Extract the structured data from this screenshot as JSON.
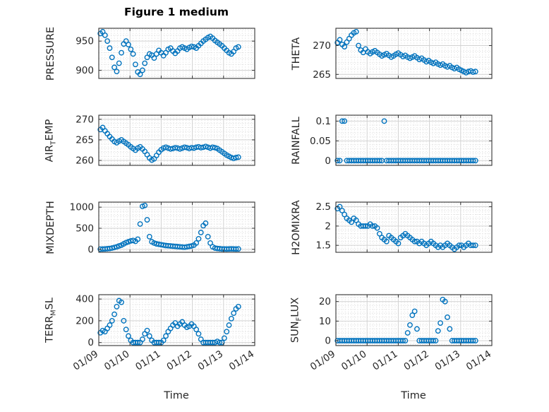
{
  "figure": {
    "title": "Figure 1 medium",
    "xlabel": "Time",
    "marker_color": "#0072BD",
    "marker_style": "circle-open"
  },
  "x_axis": {
    "tick_labels": [
      "01/09",
      "01/10",
      "01/11",
      "01/12",
      "01/13",
      "01/14"
    ],
    "range_days": [
      0,
      5
    ]
  },
  "chart_data": [
    {
      "name": "PRESSURE",
      "type": "scatter",
      "ylabel_segments": [
        {
          "text": "PRESSURE",
          "sub": false
        }
      ],
      "ylim": [
        886,
        972
      ],
      "yticks": [
        900,
        950
      ],
      "ytick_labels": [
        "900",
        "950"
      ],
      "yminor_step": 10,
      "x0": 0.05,
      "x_step": 0.075,
      "y": [
        963,
        966,
        960,
        950,
        938,
        922,
        905,
        898,
        912,
        930,
        945,
        950,
        944,
        936,
        928,
        910,
        897,
        893,
        900,
        912,
        922,
        928,
        926,
        921,
        928,
        934,
        930,
        925,
        930,
        936,
        938,
        933,
        929,
        933,
        938,
        940,
        938,
        936,
        939,
        941,
        940,
        938,
        942,
        946,
        950,
        953,
        956,
        958,
        955,
        951,
        948,
        945,
        942,
        938,
        934,
        930,
        928,
        932,
        938,
        940
      ]
    },
    {
      "name": "THETA",
      "type": "scatter",
      "ylabel_segments": [
        {
          "text": "THETA",
          "sub": false
        }
      ],
      "ylim": [
        264.3,
        273
      ],
      "yticks": [
        265,
        270
      ],
      "ytick_labels": [
        "265",
        "270"
      ],
      "yminor_step": 1,
      "x0": 0.05,
      "x_step": 0.075,
      "y": [
        270.5,
        271,
        270.2,
        269.8,
        270.6,
        271.2,
        271.8,
        272.2,
        272.4,
        270,
        269.2,
        268.8,
        269.4,
        268.9,
        268.6,
        268.9,
        269.1,
        268.8,
        268.5,
        268.2,
        268.4,
        268.6,
        268.3,
        268,
        268.2,
        268.5,
        268.7,
        268.4,
        268.1,
        268.3,
        268,
        267.8,
        268,
        268.2,
        267.9,
        267.6,
        267.8,
        267.5,
        267.2,
        267.4,
        267.1,
        266.9,
        267.1,
        266.8,
        266.6,
        266.8,
        266.5,
        266.3,
        266.5,
        266.2,
        266,
        266.2,
        265.9,
        265.7,
        265.5,
        265.3,
        265.5,
        265.6,
        265.4,
        265.5
      ]
    },
    {
      "name": "AIR_TEMP",
      "type": "scatter",
      "ylabel_segments": [
        {
          "text": "AIR",
          "sub": false
        },
        {
          "text": "T",
          "sub": true
        },
        {
          "text": "EMP",
          "sub": false
        }
      ],
      "ylim": [
        258.8,
        271
      ],
      "yticks": [
        260,
        265,
        270
      ],
      "ytick_labels": [
        "260",
        "265",
        "270"
      ],
      "yminor_step": 1,
      "x0": 0.05,
      "x_step": 0.075,
      "y": [
        267.5,
        268,
        267.2,
        266.5,
        265.8,
        265.2,
        264.6,
        264.3,
        264.7,
        265,
        264.6,
        264.2,
        263.8,
        263.3,
        262.9,
        262.5,
        263,
        263.3,
        262.8,
        262.2,
        261.4,
        260.6,
        260.1,
        260.4,
        261.2,
        262,
        262.6,
        263,
        263.2,
        263,
        262.8,
        262.9,
        263.1,
        263,
        262.8,
        263,
        263.2,
        263.1,
        262.9,
        263.1,
        263,
        263.2,
        263.3,
        263.1,
        263.2,
        263.4,
        263.2,
        263,
        263.2,
        263.1,
        262.9,
        262.5,
        262.1,
        261.7,
        261.3,
        261,
        260.7,
        260.5,
        260.7,
        260.8
      ]
    },
    {
      "name": "RAINFALL",
      "type": "scatter",
      "ylabel_segments": [
        {
          "text": "RAINFALL",
          "sub": false
        }
      ],
      "ylim": [
        -0.012,
        0.115
      ],
      "yticks": [
        0,
        0.05,
        0.1
      ],
      "ytick_labels": [
        "0",
        "0.05",
        "0.1"
      ],
      "yminor_step": 0.01,
      "x0": 0.05,
      "x_step": 0.075,
      "y": [
        0,
        0,
        0.1,
        0.1,
        0,
        0,
        0,
        0,
        0,
        0,
        0,
        0,
        0,
        0,
        0,
        0,
        0,
        0,
        0,
        0,
        0.1,
        0,
        0,
        0,
        0,
        0,
        0,
        0,
        0,
        0,
        0,
        0,
        0,
        0,
        0,
        0,
        0,
        0,
        0,
        0,
        0,
        0,
        0,
        0,
        0,
        0,
        0,
        0,
        0,
        0,
        0,
        0,
        0,
        0,
        0,
        0,
        0,
        0,
        0,
        0
      ]
    },
    {
      "name": "MIXDEPTH",
      "type": "scatter",
      "ylabel_segments": [
        {
          "text": "MIXDEPTH",
          "sub": false
        }
      ],
      "ylim": [
        -70,
        1120
      ],
      "yticks": [
        0,
        500,
        1000
      ],
      "ytick_labels": [
        "0",
        "500",
        "1000"
      ],
      "yminor_step": 100,
      "x0": 0.05,
      "x_step": 0.075,
      "y": [
        5,
        8,
        10,
        15,
        20,
        30,
        45,
        60,
        80,
        100,
        130,
        160,
        180,
        200,
        210,
        190,
        240,
        600,
        1020,
        1040,
        700,
        300,
        180,
        150,
        130,
        120,
        110,
        100,
        90,
        85,
        80,
        75,
        70,
        65,
        60,
        55,
        50,
        60,
        70,
        80,
        100,
        150,
        250,
        400,
        560,
        620,
        300,
        150,
        60,
        30,
        20,
        15,
        10,
        10,
        8,
        10,
        12,
        10,
        8,
        10
      ]
    },
    {
      "name": "H2OMIXRA",
      "type": "scatter",
      "ylabel_segments": [
        {
          "text": "H2OMIXRA",
          "sub": false
        }
      ],
      "ylim": [
        1.32,
        2.62
      ],
      "yticks": [
        1.5,
        2,
        2.5
      ],
      "ytick_labels": [
        "1.5",
        "2",
        "2.5"
      ],
      "yminor_step": 0.1,
      "x0": 0.05,
      "x_step": 0.075,
      "y": [
        2.45,
        2.5,
        2.4,
        2.3,
        2.2,
        2.15,
        2.1,
        2.2,
        2.15,
        2.05,
        2,
        2,
        2,
        2,
        2.05,
        2,
        2,
        1.95,
        1.8,
        1.7,
        1.65,
        1.6,
        1.75,
        1.7,
        1.65,
        1.6,
        1.55,
        1.7,
        1.75,
        1.8,
        1.75,
        1.7,
        1.65,
        1.6,
        1.6,
        1.55,
        1.6,
        1.55,
        1.5,
        1.55,
        1.6,
        1.55,
        1.5,
        1.45,
        1.5,
        1.45,
        1.5,
        1.55,
        1.5,
        1.45,
        1.4,
        1.45,
        1.5,
        1.5,
        1.45,
        1.5,
        1.55,
        1.5,
        1.5,
        1.5
      ]
    },
    {
      "name": "TERR_MSL",
      "type": "scatter",
      "ylabel_segments": [
        {
          "text": "TERR",
          "sub": false
        },
        {
          "text": "M",
          "sub": true
        },
        {
          "text": "SL",
          "sub": false
        }
      ],
      "ylim": [
        -28,
        440
      ],
      "yticks": [
        0,
        200,
        400
      ],
      "ytick_labels": [
        "0",
        "200",
        "400"
      ],
      "yminor_step": 50,
      "x0": 0.05,
      "x_step": 0.075,
      "y": [
        90,
        110,
        100,
        130,
        160,
        200,
        260,
        330,
        385,
        370,
        200,
        120,
        60,
        20,
        0,
        0,
        0,
        0,
        30,
        80,
        110,
        60,
        20,
        0,
        0,
        0,
        0,
        20,
        60,
        100,
        130,
        160,
        180,
        150,
        170,
        190,
        160,
        140,
        150,
        170,
        150,
        120,
        80,
        30,
        0,
        0,
        0,
        0,
        0,
        0,
        10,
        0,
        0,
        40,
        100,
        160,
        220,
        270,
        310,
        330
      ]
    },
    {
      "name": "SUN_FLUX",
      "type": "scatter",
      "ylabel_segments": [
        {
          "text": "SUN",
          "sub": false
        },
        {
          "text": "F",
          "sub": true
        },
        {
          "text": "LUX",
          "sub": false
        }
      ],
      "ylim": [
        -2.5,
        23.5
      ],
      "yticks": [
        0,
        10,
        20
      ],
      "ytick_labels": [
        "0",
        "10",
        "20"
      ],
      "yminor_step": 2,
      "x0": 0.05,
      "x_step": 0.075,
      "y": [
        0,
        0,
        0,
        0,
        0,
        0,
        0,
        0,
        0,
        0,
        0,
        0,
        0,
        0,
        0,
        0,
        0,
        0,
        0,
        0,
        0,
        0,
        0,
        0,
        0,
        0,
        0,
        0,
        0,
        0,
        4,
        8,
        13,
        15,
        6,
        0,
        0,
        0,
        0,
        0,
        0,
        0,
        0,
        5,
        9,
        21,
        20,
        12,
        6,
        0,
        0,
        0,
        0,
        0,
        0,
        0,
        0,
        0,
        0,
        0
      ]
    }
  ]
}
